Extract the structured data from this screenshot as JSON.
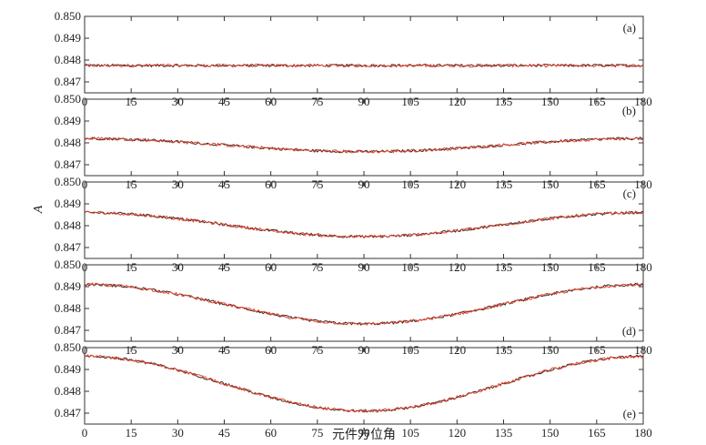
{
  "chart_data": {
    "type": "line",
    "xlabel": "元件方位角",
    "ylabel": "A",
    "xlim": [
      0,
      180
    ],
    "ylim": [
      0.8465,
      0.85
    ],
    "xticks": [
      "0",
      "15",
      "30",
      "45",
      "60",
      "75",
      "90",
      "105",
      "120",
      "135",
      "150",
      "165",
      "180"
    ],
    "yticks": [
      "0.847",
      "0.848",
      "0.849",
      "0.850"
    ],
    "grid": false,
    "series_colors": {
      "measured": "#2a2a2a",
      "fitted": "#e8402a"
    },
    "panels": [
      {
        "label": "(a)",
        "label_position": "top-right",
        "center": 0.84775,
        "amplitude": 0.0
      },
      {
        "label": "(b)",
        "label_position": "top-right",
        "center": 0.8479,
        "amplitude": 0.0003
      },
      {
        "label": "(c)",
        "label_position": "top-right",
        "center": 0.84805,
        "amplitude": 0.00055
      },
      {
        "label": "(d)",
        "label_position": "bottom-right",
        "center": 0.8482,
        "amplitude": 0.0009
      },
      {
        "label": "(e)",
        "label_position": "bottom-right",
        "center": 0.84835,
        "amplitude": 0.00125
      }
    ]
  }
}
